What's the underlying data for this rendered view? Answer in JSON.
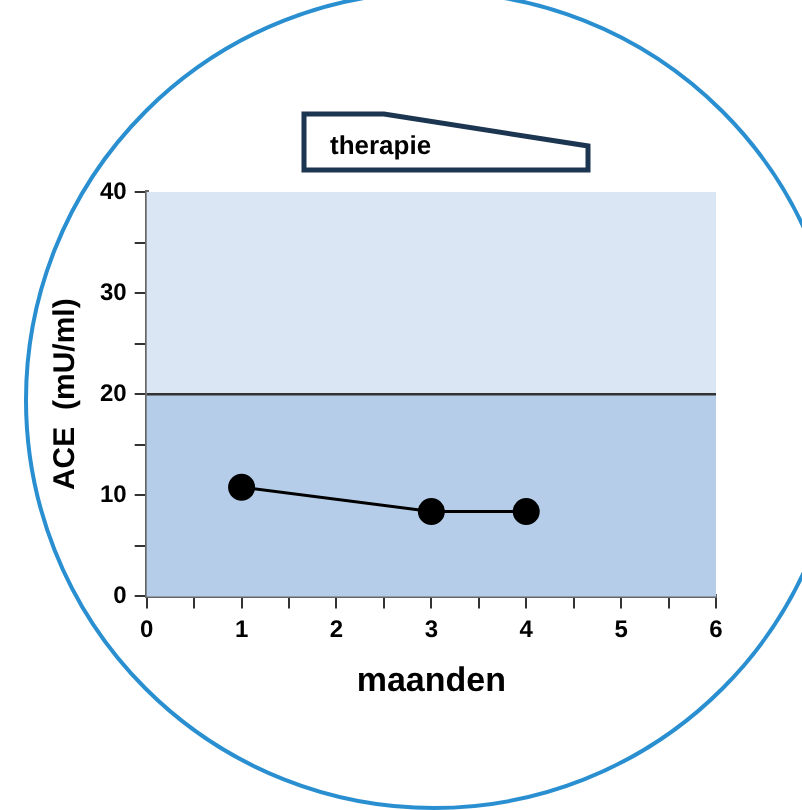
{
  "chart_data": {
    "type": "line",
    "xlabel": "maanden",
    "ylabel": "ACE  (mU/ml)",
    "annotations": [
      "therapie"
    ],
    "x": [
      1,
      3,
      4
    ],
    "series": [
      {
        "color": "#000000",
        "values": [
          10.8,
          8.4,
          8.4
        ]
      }
    ],
    "xlim": [
      0,
      6
    ],
    "xticks": [
      0,
      {
        "value": 0.5,
        "label": null
      },
      1,
      {
        "value": 1.5,
        "label": null
      },
      2,
      {
        "value": 2.5,
        "label": null
      },
      3,
      {
        "value": 3.5,
        "label": null
      },
      4,
      {
        "value": 4.5,
        "label": null
      },
      5,
      {
        "value": 5.5,
        "label": null
      },
      6
    ],
    "ylim": [
      0,
      40
    ],
    "yticks": [
      0,
      {
        "value": 5,
        "label": null
      },
      10,
      {
        "value": 15,
        "label": null
      },
      20,
      {
        "value": 25,
        "label": null
      },
      30,
      {
        "value": 35,
        "label": null
      },
      40
    ],
    "bands": [
      {
        "axis": "y",
        "from": 0,
        "to": 20,
        "color": "#b5cde8"
      },
      {
        "axis": "y",
        "from": 20,
        "to": 40,
        "color": "#dae6f3"
      }
    ],
    "ref_lines": [
      {
        "axis": "y",
        "value": 20,
        "color": "#333333",
        "line_style": "solid"
      }
    ],
    "marker": "circle",
    "line_style": "solid",
    "grid": false,
    "legend": false
  }
}
